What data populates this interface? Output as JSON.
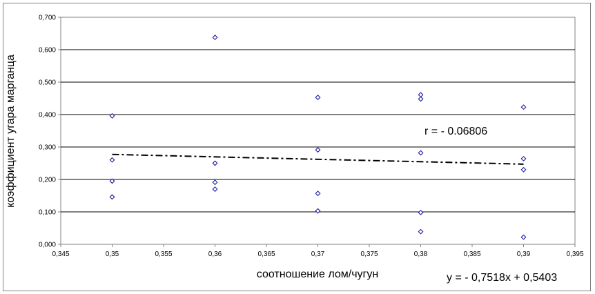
{
  "chart_data": {
    "type": "scatter",
    "title": "",
    "xlabel": "соотношение лом/чугун",
    "ylabel": "коэффициент угара марганца",
    "xlim": [
      0.345,
      0.395
    ],
    "ylim": [
      0.0,
      0.7
    ],
    "x_ticks": [
      "0,345",
      "0,35",
      "0,355",
      "0,36",
      "0,365",
      "0,37",
      "0,375",
      "0,38",
      "0,385",
      "0,39",
      "0,395"
    ],
    "y_ticks": [
      "0,000",
      "0,100",
      "0,200",
      "0,300",
      "0,400",
      "0,500",
      "0,600",
      "0,700"
    ],
    "grid": "horizontal",
    "marker": "diamond-hollow",
    "marker_color": "#1f1fa0",
    "series": [
      {
        "points": [
          {
            "x": 0.35,
            "y": 0.396
          },
          {
            "x": 0.35,
            "y": 0.26
          },
          {
            "x": 0.35,
            "y": 0.195
          },
          {
            "x": 0.35,
            "y": 0.146
          },
          {
            "x": 0.36,
            "y": 0.638
          },
          {
            "x": 0.36,
            "y": 0.25
          },
          {
            "x": 0.36,
            "y": 0.191
          },
          {
            "x": 0.36,
            "y": 0.17
          },
          {
            "x": 0.37,
            "y": 0.453
          },
          {
            "x": 0.37,
            "y": 0.291
          },
          {
            "x": 0.37,
            "y": 0.157
          },
          {
            "x": 0.37,
            "y": 0.103
          },
          {
            "x": 0.38,
            "y": 0.461
          },
          {
            "x": 0.38,
            "y": 0.448
          },
          {
            "x": 0.38,
            "y": 0.282
          },
          {
            "x": 0.38,
            "y": 0.098
          },
          {
            "x": 0.38,
            "y": 0.039
          },
          {
            "x": 0.39,
            "y": 0.423
          },
          {
            "x": 0.39,
            "y": 0.264
          },
          {
            "x": 0.39,
            "y": 0.23
          },
          {
            "x": 0.39,
            "y": 0.022
          }
        ]
      }
    ],
    "trendline": {
      "type": "linear",
      "slope": -0.7518,
      "intercept": 0.5403,
      "x_range": [
        0.35,
        0.39
      ],
      "style": "dash-dot",
      "color": "#000000"
    },
    "annotations": {
      "correlation": "r = - 0.06806",
      "equation": "y = - 0,7518x + 0,5403"
    }
  }
}
